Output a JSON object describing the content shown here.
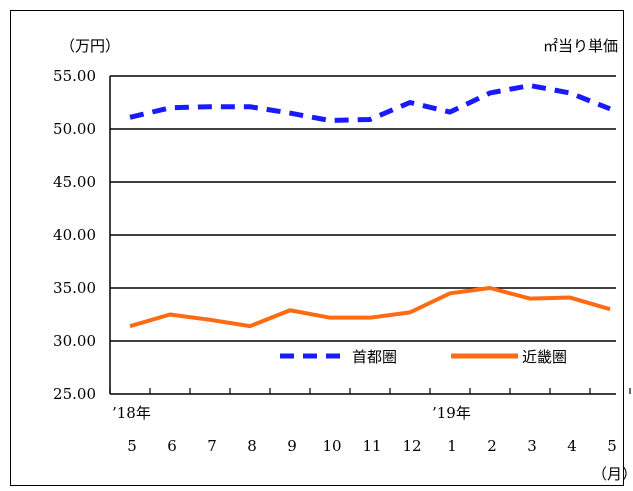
{
  "chart_data": {
    "type": "line",
    "title": "",
    "unit_label": "（万円）",
    "subtitle": "㎡当り単価",
    "xunit_label": "（月）",
    "ylim": [
      25,
      55
    ],
    "y_ticks": [
      "25.00",
      "30.00",
      "35.00",
      "40.00",
      "45.00",
      "50.00",
      "55.00"
    ],
    "categories": [
      "5",
      "6",
      "7",
      "8",
      "9",
      "10",
      "11",
      "12",
      "1",
      "2",
      "3",
      "4",
      "5"
    ],
    "year_labels": [
      {
        "label": "’18年",
        "index": 0
      },
      {
        "label": "’19年",
        "index": 8
      }
    ],
    "grid": true,
    "legend_position": "bottom-right",
    "series": [
      {
        "name": "首都圏",
        "color": "#1a1aff",
        "dash": true,
        "values": [
          51.1,
          52.0,
          52.1,
          52.1,
          51.5,
          50.8,
          50.9,
          52.5,
          51.6,
          53.4,
          54.1,
          53.4,
          51.9
        ]
      },
      {
        "name": "近畿圏",
        "color": "#ff6a13",
        "dash": false,
        "values": [
          31.4,
          32.5,
          32.0,
          31.4,
          32.9,
          32.2,
          32.2,
          32.7,
          34.5,
          35.0,
          34.0,
          34.1,
          33.0
        ]
      }
    ]
  }
}
